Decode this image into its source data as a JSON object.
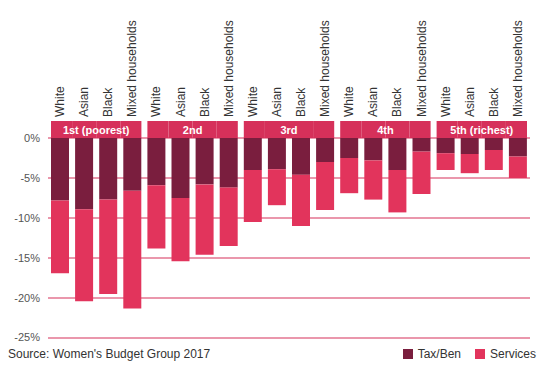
{
  "chart_data": {
    "type": "bar",
    "stacked": true,
    "grid": true,
    "legend": "bottom right",
    "source": "Source: Women's Budget Group 2017",
    "groups": [
      "1st (poorest)",
      "2nd",
      "3rd",
      "4th",
      "5th (richest)"
    ],
    "categories": [
      "White",
      "Asian",
      "Black",
      "Mixed households",
      "White",
      "Asian",
      "Black",
      "Mixed households",
      "White",
      "Asian",
      "Black",
      "Mixed households",
      "White",
      "Asian",
      "Black",
      "Mixed households",
      "White",
      "Asian",
      "Black",
      "Mixed households"
    ],
    "series": [
      {
        "name": "Tax/Ben",
        "color": "#7a1e3e",
        "values": [
          -7.8,
          -8.9,
          -7.7,
          -6.6,
          -5.9,
          -7.5,
          -5.8,
          -6.2,
          -4.0,
          -3.9,
          -4.6,
          -3.0,
          -2.5,
          -2.8,
          -4.0,
          -1.7,
          -1.9,
          -2.0,
          -1.5,
          -2.3
        ]
      },
      {
        "name": "Services",
        "color": "#e2345c",
        "values": [
          -9.1,
          -11.5,
          -11.8,
          -14.7,
          -7.9,
          -7.9,
          -8.8,
          -7.3,
          -6.5,
          -4.5,
          -6.4,
          -6.0,
          -4.4,
          -4.9,
          -5.3,
          -5.3,
          -2.1,
          -2.4,
          -2.5,
          -2.7
        ]
      }
    ],
    "ylim": [
      -25,
      0
    ],
    "yticks": [
      {
        "value": 0,
        "label": "0%"
      },
      {
        "value": -5,
        "label": "-5%"
      },
      {
        "value": -10,
        "label": "-10%"
      },
      {
        "value": -15,
        "label": "-15%"
      },
      {
        "value": -20,
        "label": "-20%"
      },
      {
        "value": -25,
        "label": "-25%"
      }
    ]
  }
}
